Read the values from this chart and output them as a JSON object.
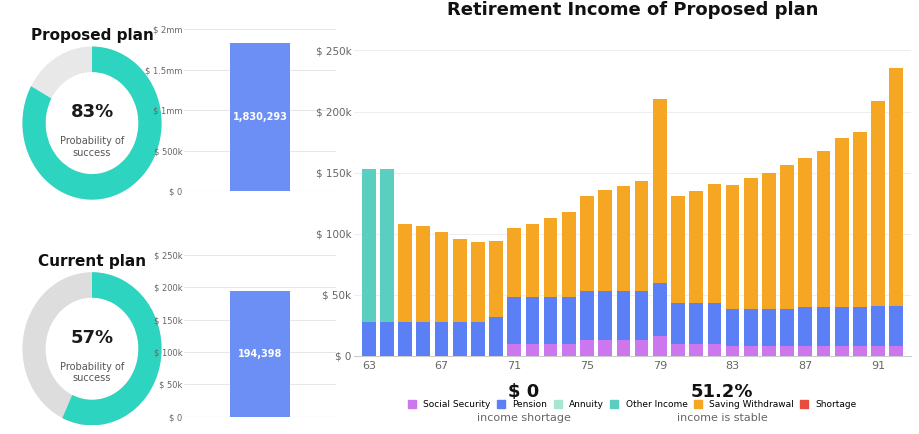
{
  "proposed_pct": 83,
  "current_pct": 57,
  "proposed_value": 1830293,
  "current_value": 194398,
  "proposed_label": "1,830,293",
  "current_label": "194,398",
  "proposed_plan_title": "Proposed plan",
  "current_plan_title": "Current plan",
  "bar_chart_title": "Retirement Income of Proposed plan",
  "income_shortage": "$ 0",
  "income_shortage_label": "income shortage",
  "income_stable": "51.2%",
  "income_stable_label": "income is stable",
  "ages": [
    63,
    64,
    65,
    66,
    67,
    68,
    69,
    70,
    71,
    72,
    73,
    74,
    75,
    76,
    77,
    78,
    79,
    80,
    81,
    82,
    83,
    84,
    85,
    86,
    87,
    88,
    89,
    90,
    91,
    92
  ],
  "social_security": [
    0,
    0,
    0,
    0,
    0,
    0,
    0,
    0,
    10000,
    10000,
    10000,
    10000,
    13000,
    13000,
    13000,
    13000,
    16000,
    10000,
    10000,
    10000,
    8000,
    8000,
    8000,
    8000,
    8000,
    8000,
    8000,
    8000,
    8000,
    8000
  ],
  "pension": [
    28000,
    28000,
    28000,
    28000,
    28000,
    28000,
    28000,
    32000,
    38000,
    38000,
    38000,
    38000,
    40000,
    40000,
    40000,
    40000,
    44000,
    33000,
    33000,
    33000,
    30000,
    30000,
    30000,
    30000,
    32000,
    32000,
    32000,
    32000,
    33000,
    33000
  ],
  "annuity": [
    0,
    0,
    0,
    0,
    0,
    0,
    0,
    0,
    0,
    0,
    0,
    0,
    0,
    0,
    0,
    0,
    0,
    0,
    0,
    0,
    0,
    0,
    0,
    0,
    0,
    0,
    0,
    0,
    0,
    0
  ],
  "other_income": [
    125000,
    125000,
    0,
    0,
    0,
    0,
    0,
    0,
    0,
    0,
    0,
    0,
    0,
    0,
    0,
    0,
    0,
    0,
    0,
    0,
    0,
    0,
    0,
    0,
    0,
    0,
    0,
    0,
    0,
    0
  ],
  "saving_withdrawal": [
    0,
    0,
    80000,
    78000,
    73000,
    68000,
    65000,
    62000,
    57000,
    60000,
    65000,
    70000,
    78000,
    83000,
    86000,
    90000,
    150000,
    88000,
    92000,
    98000,
    102000,
    108000,
    112000,
    118000,
    122000,
    128000,
    138000,
    143000,
    168000,
    195000
  ],
  "shortage": [
    0,
    0,
    0,
    0,
    0,
    0,
    0,
    0,
    0,
    0,
    0,
    0,
    0,
    0,
    0,
    0,
    0,
    0,
    0,
    0,
    0,
    0,
    0,
    0,
    0,
    0,
    0,
    0,
    0,
    0
  ],
  "colors": {
    "social_security": "#cc77ee",
    "pension": "#5b7ff5",
    "annuity": "#a8e6cf",
    "other_income": "#5bcfbf",
    "saving_withdrawal": "#f5a623",
    "shortage": "#e74c3c",
    "proposed_bar": "#6b8ff5",
    "current_bar": "#6b8ff5",
    "donut_proposed": "#2dd4bf",
    "donut_current": "#2dd4bf",
    "donut_bg_proposed": "#e8e8e8",
    "donut_bg_current": "#dddddd"
  },
  "yticks_bar": [
    0,
    50000,
    100000,
    150000,
    200000,
    250000
  ],
  "ytick_labels_bar": [
    "$ 0",
    "$ 50k",
    "$ 100k",
    "$ 150k",
    "$ 200k",
    "$ 250k"
  ],
  "yticks_proposed": [
    0,
    500000,
    1000000,
    1500000,
    2000000
  ],
  "ytick_labels_proposed": [
    "$ 0",
    "$ 500k",
    "$ 1mm",
    "$ 1.5mm",
    "$ 2mm"
  ],
  "yticks_current": [
    0,
    50000,
    100000,
    150000,
    200000,
    250000
  ],
  "ytick_labels_current": [
    "$ 0",
    "$ 50k",
    "$ 100k",
    "$ 150k",
    "$ 200k",
    "$ 250k"
  ]
}
